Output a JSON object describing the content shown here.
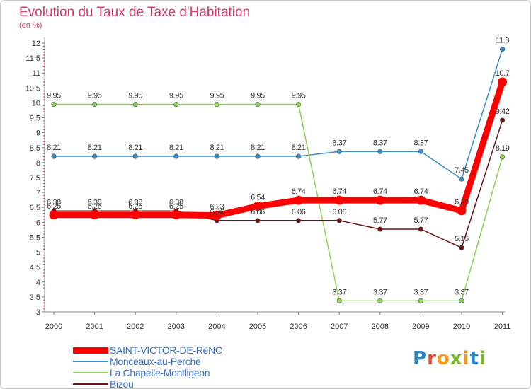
{
  "title": "Evolution du Taux de Taxe d'Habitation",
  "unit_label": "(en %)",
  "logo": {
    "letters": [
      {
        "ch": "P",
        "color": "#2f86c6"
      },
      {
        "ch": "r",
        "color": "#e8482c"
      },
      {
        "ch": "o",
        "color": "#f39a1c"
      },
      {
        "ch": "x",
        "color": "#7bb928"
      },
      {
        "ch": "i",
        "color": "#f39a1c"
      },
      {
        "ch": "t",
        "color": "#2f86c6"
      },
      {
        "ch": "i",
        "color": "#7bb928"
      }
    ]
  },
  "chart_data": {
    "type": "line",
    "title": "Evolution du Taux de Taxe d'Habitation",
    "ylabel": "(en %)",
    "x": [
      "2000",
      "2001",
      "2002",
      "2003",
      "2004",
      "2005",
      "2006",
      "2007",
      "2008",
      "2009",
      "2010",
      "2011"
    ],
    "ylim": [
      3,
      12
    ],
    "yticks": [
      "3",
      "3.5",
      "4",
      "4.5",
      "5",
      "5.5",
      "6",
      "6.5",
      "7",
      "7.5",
      "8",
      "8.5",
      "9",
      "9.5",
      "10",
      "10.5",
      "11",
      "11.5",
      "12"
    ],
    "grid": false,
    "legend_position": "bottom-left",
    "series": [
      {
        "name": "SAINT-VICTOR-DE-RéNO",
        "color": "#ff0000",
        "emphasis": true,
        "values": [
          6.25,
          6.25,
          6.25,
          6.25,
          6.23,
          6.54,
          6.74,
          6.74,
          6.74,
          6.74,
          6.39,
          10.7
        ],
        "labels": [
          "6.25",
          "6.25",
          "6.25",
          "6.25",
          "6.23",
          "6.54",
          "6.74",
          "6.74",
          "6.74",
          "6.74",
          "6.39",
          "10.7"
        ]
      },
      {
        "name": "Monceaux-au-Perche",
        "color": "#3c8dc5",
        "emphasis": false,
        "values": [
          8.21,
          8.21,
          8.21,
          8.21,
          8.21,
          8.21,
          8.21,
          8.37,
          8.37,
          8.37,
          7.45,
          11.8
        ],
        "labels": [
          "8.21",
          "8.21",
          "8.21",
          "8.21",
          "8.21",
          "8.21",
          "8.21",
          "8.37",
          "8.37",
          "8.37",
          "7.45",
          "11.8"
        ]
      },
      {
        "name": "La Chapelle-Montligeon",
        "color": "#8ed354",
        "emphasis": false,
        "values": [
          9.95,
          9.95,
          9.95,
          9.95,
          9.95,
          9.95,
          9.95,
          3.37,
          3.37,
          3.37,
          3.37,
          8.19
        ],
        "labels": [
          "9.95",
          "9.95",
          "9.95",
          "9.95",
          "9.95",
          "9.95",
          "9.95",
          "3.37",
          "3.37",
          "3.37",
          "3.37",
          "8.19"
        ]
      },
      {
        "name": "Bizou",
        "color": "#6b1414",
        "emphasis": false,
        "values": [
          6.38,
          6.38,
          6.38,
          6.38,
          6.06,
          6.06,
          6.06,
          6.06,
          5.77,
          5.77,
          5.15,
          9.42
        ],
        "labels": [
          "6.38",
          "6.38",
          "6.38",
          "6.38",
          "6.06",
          "6.06",
          "6.06",
          "6.06",
          "5.77",
          "5.77",
          "5.15",
          "9.42"
        ]
      }
    ]
  }
}
